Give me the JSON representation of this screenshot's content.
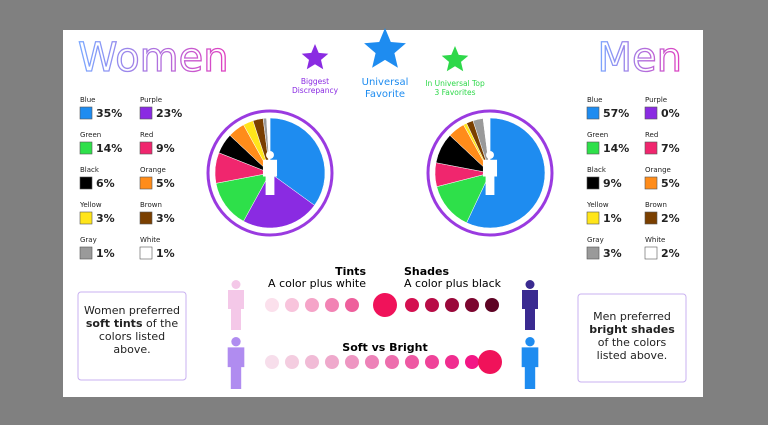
{
  "header": {
    "women": "Women",
    "men": "Men",
    "stars": [
      {
        "label": "Biggest Discrepancy",
        "color": "#8a2be2"
      },
      {
        "label": "Universal Favorite",
        "color": "#1e8cf0"
      },
      {
        "label": "In Universal Top 3 Favorites",
        "color": "#2ed84a"
      }
    ]
  },
  "chart_data": [
    {
      "type": "pie",
      "title": "Women",
      "categories": [
        "Blue",
        "Purple",
        "Green",
        "Red",
        "Black",
        "Orange",
        "Yellow",
        "Brown",
        "Gray",
        "White"
      ],
      "values": [
        35,
        23,
        14,
        9,
        6,
        5,
        3,
        3,
        1,
        1
      ],
      "value_labels": [
        "35%",
        "23%",
        "14%",
        "9%",
        "6%",
        "5%",
        "3%",
        "3%",
        "1%",
        "1%"
      ],
      "colors": [
        "#1e8cf0",
        "#8a2be2",
        "#2ee04a",
        "#f0266e",
        "#000000",
        "#ff8c1a",
        "#ffe51a",
        "#7a3f00",
        "#9a9a9a",
        "#ffffff"
      ]
    },
    {
      "type": "pie",
      "title": "Men",
      "categories": [
        "Blue",
        "Purple",
        "Green",
        "Red",
        "Black",
        "Orange",
        "Yellow",
        "Brown",
        "Gray",
        "White"
      ],
      "values": [
        57,
        0,
        14,
        7,
        9,
        5,
        1,
        2,
        3,
        2
      ],
      "value_labels": [
        "57%",
        "0%",
        "14%",
        "7%",
        "9%",
        "5%",
        "1%",
        "2%",
        "3%",
        "2%"
      ],
      "colors": [
        "#1e8cf0",
        "#8a2be2",
        "#2ee04a",
        "#f0266e",
        "#000000",
        "#ff8c1a",
        "#ffe51a",
        "#7a3f00",
        "#9a9a9a",
        "#ffffff"
      ]
    }
  ],
  "tints": {
    "title": "Tints",
    "text": "A color plus white"
  },
  "shades": {
    "title": "Shades",
    "text": "A color plus black"
  },
  "soft_vs_bright": "Soft vs Bright",
  "women_box": {
    "before": "Women preferred",
    "bold": "soft tints",
    "after": "of the colors listed above."
  },
  "men_box": {
    "before": "Men preferred",
    "bold": "bright shades",
    "after": "of the colors listed above."
  }
}
